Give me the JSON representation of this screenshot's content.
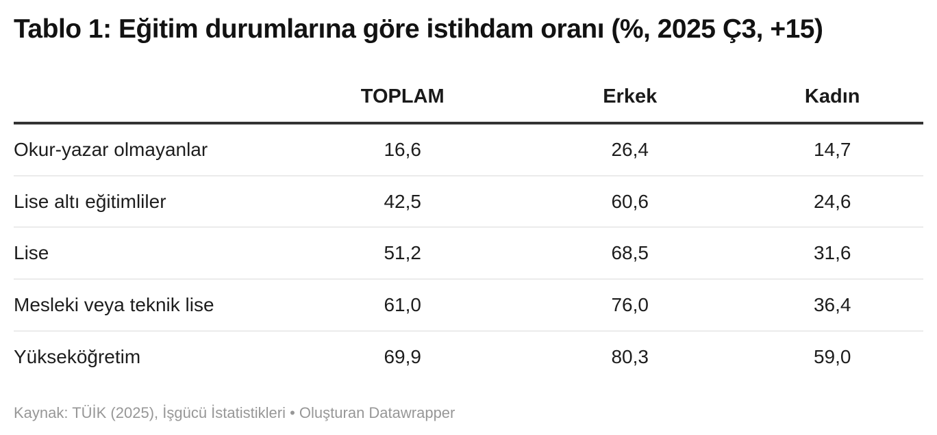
{
  "title": "Tablo 1: Eğitim durumlarına göre istihdam oranı (%, 2025 Ç3, +15)",
  "table": {
    "columns": [
      "",
      "TOPLAM",
      "Erkek",
      "Kadın"
    ],
    "rows": [
      {
        "label": "Okur-yazar olmayanlar",
        "values": [
          "16,6",
          "26,4",
          "14,7"
        ]
      },
      {
        "label": "Lise altı eğitimliler",
        "values": [
          "42,5",
          "60,6",
          "24,6"
        ]
      },
      {
        "label": "Lise",
        "values": [
          "51,2",
          "68,5",
          "31,6"
        ]
      },
      {
        "label": "Mesleki veya teknik lise",
        "values": [
          "61,0",
          "76,0",
          "36,4"
        ]
      },
      {
        "label": "Yükseköğretim",
        "values": [
          "69,9",
          "80,3",
          "59,0"
        ]
      }
    ]
  },
  "footer": {
    "source": "Kaynak: TÜİK (2025), İşgücü İstatistikleri",
    "separator": " • ",
    "byline": "Oluşturan Datawrapper"
  },
  "colors": {
    "title_text": "#121212",
    "body_text": "#1d1d1d",
    "header_rule": "#333333",
    "row_separator": "#ebebeb",
    "footer_text": "#979797",
    "background": "#ffffff"
  },
  "chart_data": {
    "type": "table",
    "title": "Tablo 1: Eğitim durumlarına göre istihdam oranı (%, 2025 Ç3, +15)",
    "categories": [
      "Okur-yazar olmayanlar",
      "Lise altı eğitimliler",
      "Lise",
      "Mesleki veya teknik lise",
      "Yükseköğretim"
    ],
    "series": [
      {
        "name": "TOPLAM",
        "values": [
          16.6,
          42.5,
          51.2,
          61.0,
          69.9
        ]
      },
      {
        "name": "Erkek",
        "values": [
          26.4,
          60.6,
          68.5,
          76.0,
          80.3
        ]
      },
      {
        "name": "Kadın",
        "values": [
          14.7,
          24.6,
          31.6,
          36.4,
          59.0
        ]
      }
    ],
    "value_format": "decimal-comma, 1 fraction digit, percent",
    "source": "Kaynak: TÜİK (2025), İşgücü İstatistikleri",
    "byline": "Oluşturan Datawrapper"
  }
}
